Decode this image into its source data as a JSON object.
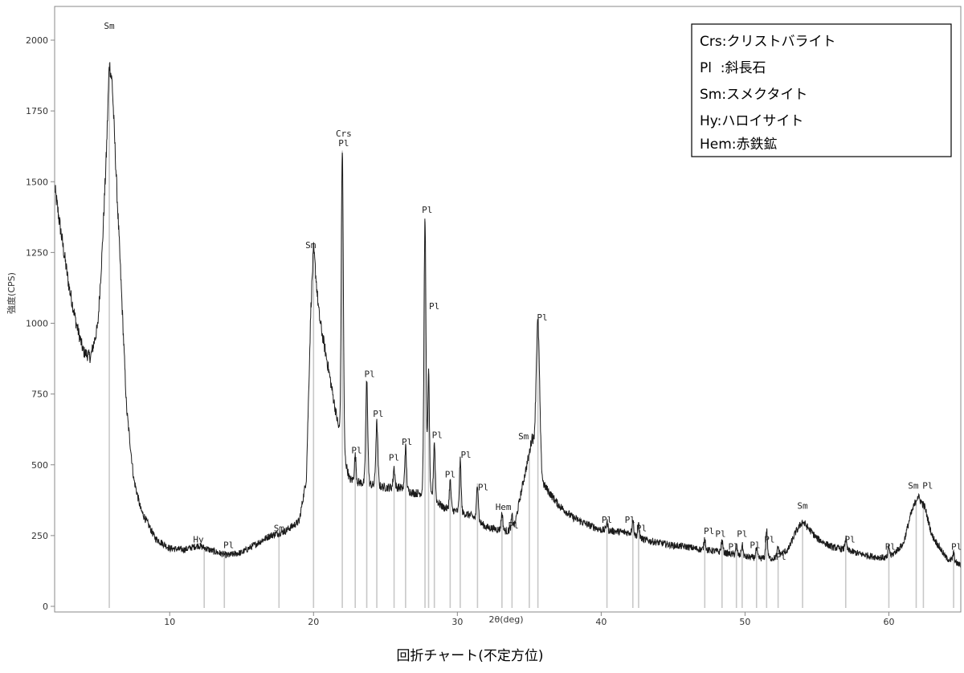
{
  "caption": "回折チャート(不定方位)",
  "legend": [
    "Crs:クリストバライト",
    "Pl  :斜長石",
    "Sm:スメクタイト",
    "Hy:ハロイサイト",
    "Hem:赤鉄鉱"
  ],
  "chart_data": {
    "type": "line",
    "xlabel": "2θ(deg)",
    "ylabel": "強度(CPS)",
    "xlim": [
      2,
      65
    ],
    "ylim": [
      0,
      2100
    ],
    "x_ticks": [
      10,
      20,
      30,
      40,
      50,
      60
    ],
    "y_ticks": [
      0,
      250,
      500,
      750,
      1000,
      1250,
      1500,
      1750,
      2000
    ],
    "grid": false,
    "legend_position": "top-right",
    "background_points": [
      [
        2,
        1480
      ],
      [
        2.5,
        1300
      ],
      [
        3,
        1130
      ],
      [
        3.5,
        1000
      ],
      [
        4,
        900
      ],
      [
        4.5,
        880
      ],
      [
        5,
        990
      ],
      [
        5.3,
        1250
      ],
      [
        5.6,
        1600
      ],
      [
        5.8,
        1920
      ],
      [
        6.0,
        1850
      ],
      [
        6.3,
        1500
      ],
      [
        6.7,
        1050
      ],
      [
        7,
        700
      ],
      [
        7.5,
        450
      ],
      [
        8,
        340
      ],
      [
        9,
        240
      ],
      [
        10,
        205
      ],
      [
        11,
        200
      ],
      [
        12,
        215
      ],
      [
        13,
        195
      ],
      [
        14,
        180
      ],
      [
        15,
        190
      ],
      [
        16,
        220
      ],
      [
        17,
        250
      ],
      [
        18,
        265
      ],
      [
        19,
        300
      ],
      [
        19.5,
        450
      ],
      [
        19.8,
        1000
      ],
      [
        20.0,
        1200
      ],
      [
        20.4,
        1020
      ],
      [
        21,
        850
      ],
      [
        21.5,
        700
      ],
      [
        22,
        560
      ],
      [
        22.5,
        450
      ],
      [
        23,
        440
      ],
      [
        25,
        420
      ],
      [
        26,
        420
      ],
      [
        27,
        400
      ],
      [
        28,
        400
      ],
      [
        29,
        350
      ],
      [
        30,
        335
      ],
      [
        31,
        320
      ],
      [
        32,
        280
      ],
      [
        33,
        270
      ],
      [
        33.5,
        265
      ],
      [
        34,
        290
      ],
      [
        34.5,
        420
      ],
      [
        35,
        540
      ],
      [
        35.2,
        600
      ],
      [
        35.6,
        480
      ],
      [
        36,
        430
      ],
      [
        37,
        360
      ],
      [
        38,
        315
      ],
      [
        39,
        290
      ],
      [
        40,
        270
      ],
      [
        41,
        265
      ],
      [
        42,
        260
      ],
      [
        43,
        235
      ],
      [
        44,
        225
      ],
      [
        45,
        215
      ],
      [
        46,
        210
      ],
      [
        47,
        200
      ],
      [
        48,
        195
      ],
      [
        49,
        185
      ],
      [
        50,
        175
      ],
      [
        51,
        170
      ],
      [
        52,
        170
      ],
      [
        53,
        200
      ],
      [
        53.5,
        260
      ],
      [
        54,
        300
      ],
      [
        55,
        240
      ],
      [
        56,
        210
      ],
      [
        57,
        200
      ],
      [
        58,
        185
      ],
      [
        59,
        175
      ],
      [
        60,
        170
      ],
      [
        61,
        220
      ],
      [
        61.5,
        320
      ],
      [
        62,
        390
      ],
      [
        62.5,
        350
      ],
      [
        63,
        250
      ],
      [
        64,
        170
      ],
      [
        65,
        145
      ]
    ],
    "peaks": [
      {
        "x": 20.0,
        "h": 60,
        "w": 0.18
      },
      {
        "x": 22.0,
        "h": 1050,
        "w": 0.07
      },
      {
        "x": 22.9,
        "h": 90,
        "w": 0.06
      },
      {
        "x": 23.7,
        "h": 360,
        "w": 0.07
      },
      {
        "x": 24.4,
        "h": 220,
        "w": 0.07
      },
      {
        "x": 25.6,
        "h": 70,
        "w": 0.06
      },
      {
        "x": 26.4,
        "h": 150,
        "w": 0.06
      },
      {
        "x": 27.75,
        "h": 960,
        "w": 0.07
      },
      {
        "x": 28.0,
        "h": 420,
        "w": 0.06
      },
      {
        "x": 28.4,
        "h": 200,
        "w": 0.06
      },
      {
        "x": 29.5,
        "h": 100,
        "w": 0.06
      },
      {
        "x": 30.2,
        "h": 180,
        "w": 0.06
      },
      {
        "x": 31.4,
        "h": 130,
        "w": 0.06
      },
      {
        "x": 33.1,
        "h": 60,
        "w": 0.06
      },
      {
        "x": 33.8,
        "h": 40,
        "w": 0.05
      },
      {
        "x": 35.6,
        "h": 520,
        "w": 0.12
      },
      {
        "x": 40.4,
        "h": 30,
        "w": 0.06
      },
      {
        "x": 42.2,
        "h": 50,
        "w": 0.06
      },
      {
        "x": 42.6,
        "h": 40,
        "w": 0.06
      },
      {
        "x": 47.2,
        "h": 40,
        "w": 0.06
      },
      {
        "x": 48.4,
        "h": 40,
        "w": 0.06
      },
      {
        "x": 49.4,
        "h": 35,
        "w": 0.06
      },
      {
        "x": 49.8,
        "h": 40,
        "w": 0.06
      },
      {
        "x": 50.8,
        "h": 30,
        "w": 0.06
      },
      {
        "x": 51.5,
        "h": 100,
        "w": 0.06
      },
      {
        "x": 52.3,
        "h": 30,
        "w": 0.06
      },
      {
        "x": 57.0,
        "h": 40,
        "w": 0.06
      },
      {
        "x": 60.0,
        "h": 40,
        "w": 0.06
      },
      {
        "x": 64.5,
        "h": 30,
        "w": 0.06
      }
    ],
    "markers": [
      5.8,
      12.4,
      13.8,
      17.6,
      20.0,
      22.0,
      22.9,
      23.7,
      24.4,
      25.6,
      26.4,
      27.75,
      28.0,
      28.4,
      29.5,
      30.2,
      31.4,
      33.1,
      33.8,
      35.0,
      35.6,
      40.4,
      42.2,
      42.6,
      47.2,
      48.4,
      49.4,
      49.8,
      50.8,
      51.5,
      52.3,
      54.0,
      57.0,
      60.0,
      61.9,
      62.4,
      64.5
    ],
    "annotations": [
      {
        "text": "Sm",
        "x": 5.8,
        "y": 2040
      },
      {
        "text": "Hy",
        "x": 12.0,
        "y": 225
      },
      {
        "text": "Pl",
        "x": 14.1,
        "y": 205
      },
      {
        "text": "Sm",
        "x": 17.6,
        "y": 265
      },
      {
        "text": "Sm",
        "x": 19.8,
        "y": 1265
      },
      {
        "text": "Crs",
        "x": 22.1,
        "y": 1660
      },
      {
        "text": "Pl",
        "x": 22.1,
        "y": 1625
      },
      {
        "text": "Pl",
        "x": 23.0,
        "y": 540
      },
      {
        "text": "Pl",
        "x": 23.9,
        "y": 810
      },
      {
        "text": "Pl",
        "x": 24.5,
        "y": 670
      },
      {
        "text": "Pl",
        "x": 25.6,
        "y": 515
      },
      {
        "text": "Pl",
        "x": 26.5,
        "y": 570
      },
      {
        "text": "Pl",
        "x": 27.9,
        "y": 1390
      },
      {
        "text": "Pl",
        "x": 28.4,
        "y": 1050
      },
      {
        "text": "Pl",
        "x": 28.6,
        "y": 595
      },
      {
        "text": "Pl",
        "x": 29.5,
        "y": 455
      },
      {
        "text": "Pl",
        "x": 30.6,
        "y": 525
      },
      {
        "text": "Pl",
        "x": 31.8,
        "y": 410
      },
      {
        "text": "Hem",
        "x": 33.2,
        "y": 340
      },
      {
        "text": "Pl",
        "x": 33.9,
        "y": 275
      },
      {
        "text": "Sm",
        "x": 34.6,
        "y": 590
      },
      {
        "text": "Pl",
        "x": 35.9,
        "y": 1010
      },
      {
        "text": "Pl",
        "x": 40.4,
        "y": 295
      },
      {
        "text": "Pl",
        "x": 42.0,
        "y": 295
      },
      {
        "text": "Pl",
        "x": 42.8,
        "y": 265
      },
      {
        "text": "Pl",
        "x": 47.5,
        "y": 255
      },
      {
        "text": "Pl",
        "x": 48.3,
        "y": 245
      },
      {
        "text": "Pl",
        "x": 49.2,
        "y": 200
      },
      {
        "text": "Pl",
        "x": 49.8,
        "y": 245
      },
      {
        "text": "Pl",
        "x": 50.7,
        "y": 205
      },
      {
        "text": "Pl",
        "x": 51.7,
        "y": 225
      },
      {
        "text": "Pl",
        "x": 52.5,
        "y": 165
      },
      {
        "text": "Sm",
        "x": 54.0,
        "y": 345
      },
      {
        "text": "Pl",
        "x": 57.3,
        "y": 225
      },
      {
        "text": "Pl",
        "x": 60.1,
        "y": 200
      },
      {
        "text": "Sm",
        "x": 61.7,
        "y": 415
      },
      {
        "text": "Pl",
        "x": 62.7,
        "y": 415
      },
      {
        "text": "Pl",
        "x": 64.7,
        "y": 200
      }
    ],
    "colors": {
      "trace": "#1a1a1a",
      "marker": "#c8c8c8",
      "frame": "#888888"
    }
  }
}
